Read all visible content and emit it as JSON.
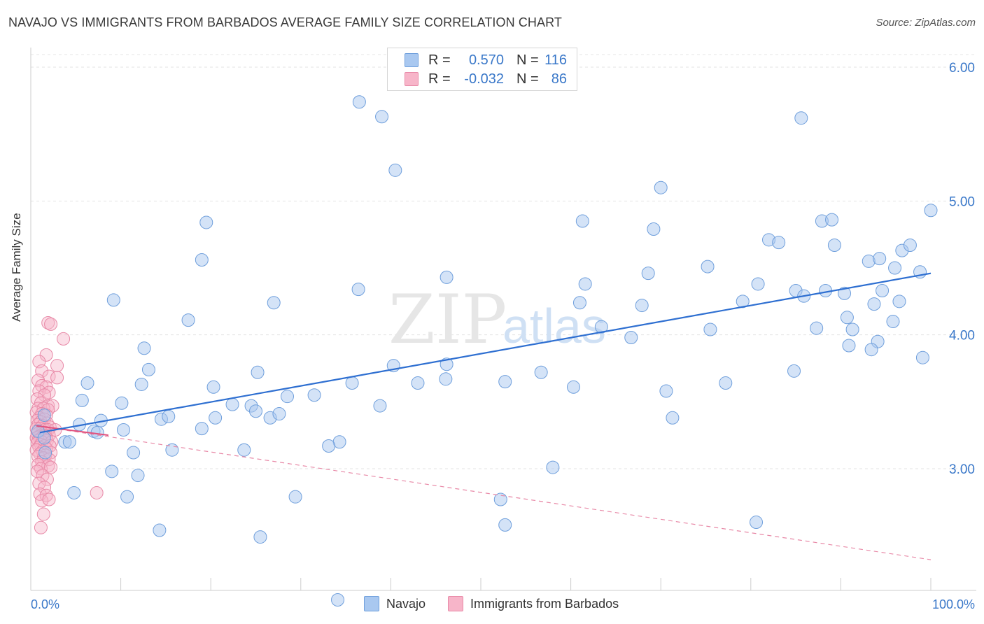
{
  "title": "NAVAJO VS IMMIGRANTS FROM BARBADOS AVERAGE FAMILY SIZE CORRELATION CHART",
  "source": "Source: ZipAtlas.com",
  "watermark": {
    "part1": "ZIP",
    "part2": "atlas"
  },
  "legend": {
    "rows": [
      {
        "r_label": "R =",
        "r_value": "0.570",
        "n_label": "N =",
        "n_value": "116",
        "color": "#a9c8f0",
        "border": "#6f9fdc"
      },
      {
        "r_label": "R =",
        "r_value": "-0.032",
        "n_label": "N =",
        "n_value": "86",
        "color": "#f7b5c9",
        "border": "#e889a7"
      }
    ]
  },
  "bottom_legend": {
    "series1": "Navajo",
    "series2": "Immigrants from Barbados"
  },
  "chart_data": {
    "type": "scatter",
    "title": "NAVAJO VS IMMIGRANTS FROM BARBADOS AVERAGE FAMILY SIZE CORRELATION CHART",
    "xlabel": "",
    "ylabel": "Average Family Size",
    "xlim": [
      0,
      100
    ],
    "ylim": [
      2.2,
      6.1
    ],
    "x_tick_labels": [
      "0.0%",
      "100.0%"
    ],
    "y_ticks": [
      3.0,
      4.0,
      5.0,
      6.0
    ],
    "y_tick_labels": [
      "3.00",
      "4.00",
      "5.00",
      "6.00"
    ],
    "grid": "horizontal dashed",
    "legend_position": "top-center",
    "series": [
      {
        "name": "Navajo",
        "color": "#a9c8f0",
        "stroke": "#6f9fdc",
        "trend": {
          "x": [
            1,
            100
          ],
          "y": [
            3.27,
            4.46
          ],
          "color": "#2e6fd1",
          "style": "solid"
        },
        "points": [
          [
            36.5,
            5.74
          ],
          [
            39,
            5.63
          ],
          [
            40.5,
            5.23
          ],
          [
            85.6,
            5.62
          ],
          [
            70,
            5.1
          ],
          [
            100,
            4.93
          ],
          [
            19.5,
            4.84
          ],
          [
            61.3,
            4.85
          ],
          [
            69.2,
            4.79
          ],
          [
            87.9,
            4.85
          ],
          [
            89,
            4.86
          ],
          [
            82,
            4.71
          ],
          [
            83.1,
            4.69
          ],
          [
            89.3,
            4.67
          ],
          [
            96.8,
            4.63
          ],
          [
            97.7,
            4.67
          ],
          [
            93.1,
            4.55
          ],
          [
            94.3,
            4.57
          ],
          [
            19,
            4.56
          ],
          [
            75.2,
            4.51
          ],
          [
            98.8,
            4.47
          ],
          [
            96,
            4.5
          ],
          [
            68.6,
            4.46
          ],
          [
            46.2,
            4.43
          ],
          [
            61.6,
            4.38
          ],
          [
            80.8,
            4.38
          ],
          [
            36.4,
            4.34
          ],
          [
            85,
            4.33
          ],
          [
            88.3,
            4.33
          ],
          [
            90.4,
            4.31
          ],
          [
            94.6,
            4.33
          ],
          [
            85.9,
            4.29
          ],
          [
            9.2,
            4.26
          ],
          [
            27,
            4.24
          ],
          [
            61,
            4.24
          ],
          [
            67.9,
            4.22
          ],
          [
            79.1,
            4.25
          ],
          [
            93.7,
            4.23
          ],
          [
            96.5,
            4.25
          ],
          [
            17.5,
            4.11
          ],
          [
            90.7,
            4.13
          ],
          [
            95.8,
            4.1
          ],
          [
            63.4,
            4.06
          ],
          [
            87.3,
            4.05
          ],
          [
            75.5,
            4.04
          ],
          [
            91.3,
            4.04
          ],
          [
            66.7,
            3.98
          ],
          [
            94.1,
            3.95
          ],
          [
            12.6,
            3.9
          ],
          [
            90.9,
            3.92
          ],
          [
            93.4,
            3.89
          ],
          [
            99.1,
            3.83
          ],
          [
            40.3,
            3.77
          ],
          [
            46.2,
            3.78
          ],
          [
            13.1,
            3.74
          ],
          [
            25.2,
            3.72
          ],
          [
            56.7,
            3.72
          ],
          [
            84.8,
            3.73
          ],
          [
            6.3,
            3.64
          ],
          [
            12.3,
            3.63
          ],
          [
            20.3,
            3.61
          ],
          [
            35.7,
            3.64
          ],
          [
            43,
            3.64
          ],
          [
            46.1,
            3.67
          ],
          [
            52.7,
            3.65
          ],
          [
            60.3,
            3.61
          ],
          [
            77.2,
            3.64
          ],
          [
            70.6,
            3.58
          ],
          [
            5.7,
            3.51
          ],
          [
            10.1,
            3.49
          ],
          [
            28.5,
            3.54
          ],
          [
            31.5,
            3.55
          ],
          [
            22.4,
            3.48
          ],
          [
            24.5,
            3.47
          ],
          [
            38.8,
            3.47
          ],
          [
            1.5,
            3.4
          ],
          [
            7.8,
            3.36
          ],
          [
            14.5,
            3.37
          ],
          [
            15.3,
            3.39
          ],
          [
            20.5,
            3.38
          ],
          [
            25,
            3.43
          ],
          [
            26.6,
            3.38
          ],
          [
            27.6,
            3.41
          ],
          [
            71.3,
            3.38
          ],
          [
            5.4,
            3.33
          ],
          [
            0.8,
            3.28
          ],
          [
            10.3,
            3.29
          ],
          [
            19,
            3.3
          ],
          [
            1.5,
            3.23
          ],
          [
            7,
            3.28
          ],
          [
            7.4,
            3.27
          ],
          [
            3.8,
            3.2
          ],
          [
            4.3,
            3.2
          ],
          [
            34.3,
            3.2
          ],
          [
            33.1,
            3.17
          ],
          [
            1.6,
            3.12
          ],
          [
            11.4,
            3.12
          ],
          [
            15.7,
            3.14
          ],
          [
            23.7,
            3.14
          ],
          [
            9,
            2.98
          ],
          [
            11.9,
            2.95
          ],
          [
            58,
            3.01
          ],
          [
            4.8,
            2.82
          ],
          [
            10.7,
            2.79
          ],
          [
            29.4,
            2.79
          ],
          [
            52.2,
            2.77
          ],
          [
            14.3,
            2.54
          ],
          [
            52.7,
            2.58
          ],
          [
            80.6,
            2.6
          ],
          [
            25.5,
            2.49
          ],
          [
            34.1,
            2.02
          ]
        ]
      },
      {
        "name": "Immigrants from Barbados",
        "color": "#f7b5c9",
        "stroke": "#e889a7",
        "trend_solid": {
          "x": [
            0,
            8
          ],
          "y": [
            3.32,
            3.25
          ],
          "color": "#e0517e",
          "style": "solid"
        },
        "trend": {
          "x": [
            0,
            100
          ],
          "y": [
            3.32,
            2.32
          ],
          "color": "#e889a7",
          "style": "dashed"
        },
        "points": [
          [
            1.3,
            4.09
          ],
          [
            1.6,
            4.08
          ],
          [
            3,
            3.97
          ],
          [
            1.1,
            3.85
          ],
          [
            0.3,
            3.8
          ],
          [
            2.3,
            3.77
          ],
          [
            0.6,
            3.73
          ],
          [
            1.4,
            3.69
          ],
          [
            2.3,
            3.68
          ],
          [
            0.2,
            3.66
          ],
          [
            0.6,
            3.62
          ],
          [
            1.1,
            3.61
          ],
          [
            0.3,
            3.58
          ],
          [
            1.4,
            3.57
          ],
          [
            0.9,
            3.55
          ],
          [
            0.1,
            3.52
          ],
          [
            0.5,
            3.49
          ],
          [
            1.3,
            3.47
          ],
          [
            1.8,
            3.47
          ],
          [
            0.2,
            3.45
          ],
          [
            0.8,
            3.45
          ],
          [
            1.3,
            3.44
          ],
          [
            0,
            3.42
          ],
          [
            0.6,
            3.41
          ],
          [
            1.1,
            3.4
          ],
          [
            0.3,
            3.38
          ],
          [
            0.9,
            3.37
          ],
          [
            0.1,
            3.36
          ],
          [
            0.5,
            3.35
          ],
          [
            1.2,
            3.34
          ],
          [
            0.2,
            3.33
          ],
          [
            0.7,
            3.32
          ],
          [
            1.5,
            3.31
          ],
          [
            0,
            3.3
          ],
          [
            0.4,
            3.3
          ],
          [
            0.9,
            3.29
          ],
          [
            1.3,
            3.29
          ],
          [
            2.1,
            3.29
          ],
          [
            0.2,
            3.28
          ],
          [
            0.6,
            3.27
          ],
          [
            1,
            3.27
          ],
          [
            0.1,
            3.26
          ],
          [
            0.5,
            3.25
          ],
          [
            0.9,
            3.25
          ],
          [
            1.4,
            3.25
          ],
          [
            0.3,
            3.24
          ],
          [
            0.7,
            3.24
          ],
          [
            1.1,
            3.23
          ],
          [
            0,
            3.23
          ],
          [
            0.4,
            3.22
          ],
          [
            0.8,
            3.22
          ],
          [
            1.2,
            3.21
          ],
          [
            0.2,
            3.21
          ],
          [
            0.6,
            3.2
          ],
          [
            1.7,
            3.2
          ],
          [
            0.1,
            3.19
          ],
          [
            0.5,
            3.18
          ],
          [
            0.9,
            3.17
          ],
          [
            1.5,
            3.17
          ],
          [
            0.3,
            3.16
          ],
          [
            1.1,
            3.15
          ],
          [
            0,
            3.14
          ],
          [
            0.7,
            3.13
          ],
          [
            1.6,
            3.12
          ],
          [
            0.4,
            3.11
          ],
          [
            1,
            3.1
          ],
          [
            0.2,
            3.09
          ],
          [
            0.8,
            3.08
          ],
          [
            1.4,
            3.07
          ],
          [
            0.6,
            3.05
          ],
          [
            0.2,
            3.03
          ],
          [
            1.3,
            3.02
          ],
          [
            0.5,
            3
          ],
          [
            1.6,
            3.01
          ],
          [
            0.1,
            2.98
          ],
          [
            0.7,
            2.95
          ],
          [
            1.2,
            2.92
          ],
          [
            0.3,
            2.89
          ],
          [
            0.9,
            2.86
          ],
          [
            0.4,
            2.81
          ],
          [
            6.7,
            2.82
          ],
          [
            1.1,
            2.8
          ],
          [
            0.6,
            2.76
          ],
          [
            1.4,
            2.77
          ],
          [
            0.8,
            2.66
          ],
          [
            0.5,
            2.56
          ]
        ]
      }
    ]
  }
}
